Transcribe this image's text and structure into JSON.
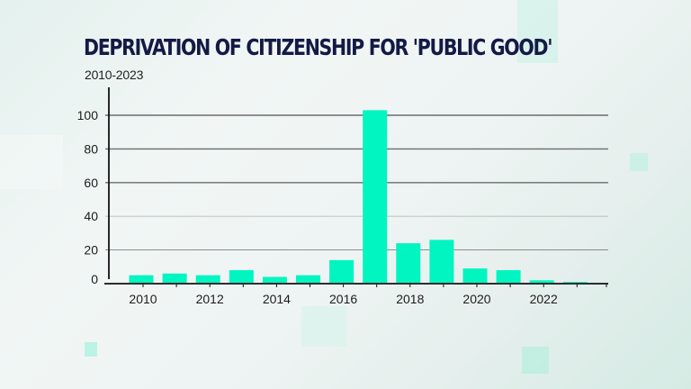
{
  "colors": {
    "bar": "#00f5c0",
    "title": "#141a45",
    "axis": "#111111",
    "grid": "#555555"
  },
  "chart_data": {
    "type": "bar",
    "title": "DEPRIVATION OF CITIZENSHIP FOR 'PUBLIC GOOD'",
    "subtitle": "2010-2023",
    "xlabel": "",
    "ylabel": "",
    "categories": [
      2010,
      2011,
      2012,
      2013,
      2014,
      2015,
      2016,
      2017,
      2018,
      2019,
      2020,
      2021,
      2022,
      2023
    ],
    "values": [
      5,
      6,
      5,
      8,
      4,
      5,
      14,
      103,
      24,
      26,
      9,
      8,
      2,
      1
    ],
    "xtick_labels": [
      "2010",
      "2012",
      "2014",
      "2016",
      "2018",
      "2020",
      "2022"
    ],
    "ytick_labels": [
      "0",
      "20",
      "40",
      "60",
      "80",
      "100"
    ],
    "yticks": [
      0,
      20,
      40,
      60,
      80,
      100
    ],
    "ylim": [
      0,
      116
    ],
    "grid": true,
    "legend": "none"
  }
}
